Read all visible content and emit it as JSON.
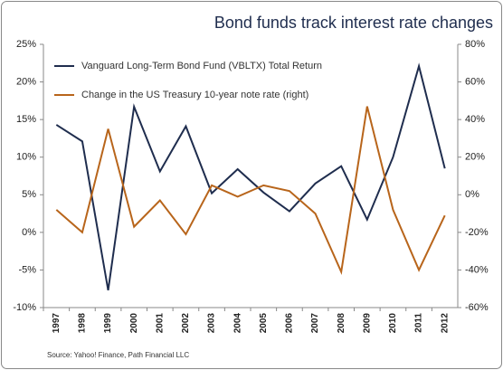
{
  "chart_data": {
    "type": "line",
    "title": "Bond funds track interest rate changes",
    "source": "Source: Yahoo! Finance, Path Financial LLC",
    "categories": [
      "1997",
      "1998",
      "1999",
      "2000",
      "2001",
      "2002",
      "2003",
      "2004",
      "2005",
      "2006",
      "2007",
      "2008",
      "2009",
      "2010",
      "2011",
      "2012"
    ],
    "series": [
      {
        "name": "Vanguard Long-Term Bond Fund (VBLTX) Total Return",
        "color": "#1f2d4e",
        "values": [
          14.3,
          12.1,
          -7.7,
          16.7,
          8.1,
          14.1,
          5.2,
          8.4,
          5.3,
          2.8,
          6.5,
          8.8,
          1.7,
          10.0,
          22.1,
          8.5
        ]
      },
      {
        "name": "Change in the US Treasury 10-year note rate (right)",
        "color": "#b8651b",
        "axis": "y2",
        "values": [
          -8,
          -20,
          35,
          -17,
          -3,
          -21,
          5,
          -1,
          5,
          2,
          -10,
          -41,
          47,
          -8,
          -40,
          -11
        ]
      }
    ],
    "ylim": [
      -10,
      25
    ],
    "yticks": [
      {
        "value": -10,
        "label": "-10%"
      },
      {
        "value": -5,
        "label": "-5%"
      },
      {
        "value": 0,
        "label": "0%"
      },
      {
        "value": 5,
        "label": "5%"
      },
      {
        "value": 10,
        "label": "10%"
      },
      {
        "value": 15,
        "label": "15%"
      },
      {
        "value": 20,
        "label": "20%"
      },
      {
        "value": 25,
        "label": "25%"
      }
    ],
    "y2lim": [
      -60,
      80
    ],
    "y2ticks": [
      {
        "value": -60,
        "label": "-60%"
      },
      {
        "value": -40,
        "label": "-40%"
      },
      {
        "value": -20,
        "label": "-20%"
      },
      {
        "value": 0,
        "label": "0%"
      },
      {
        "value": 20,
        "label": "20%"
      },
      {
        "value": 40,
        "label": "40%"
      },
      {
        "value": 60,
        "label": "60%"
      },
      {
        "value": 80,
        "label": "80%"
      }
    ],
    "grid": false
  }
}
